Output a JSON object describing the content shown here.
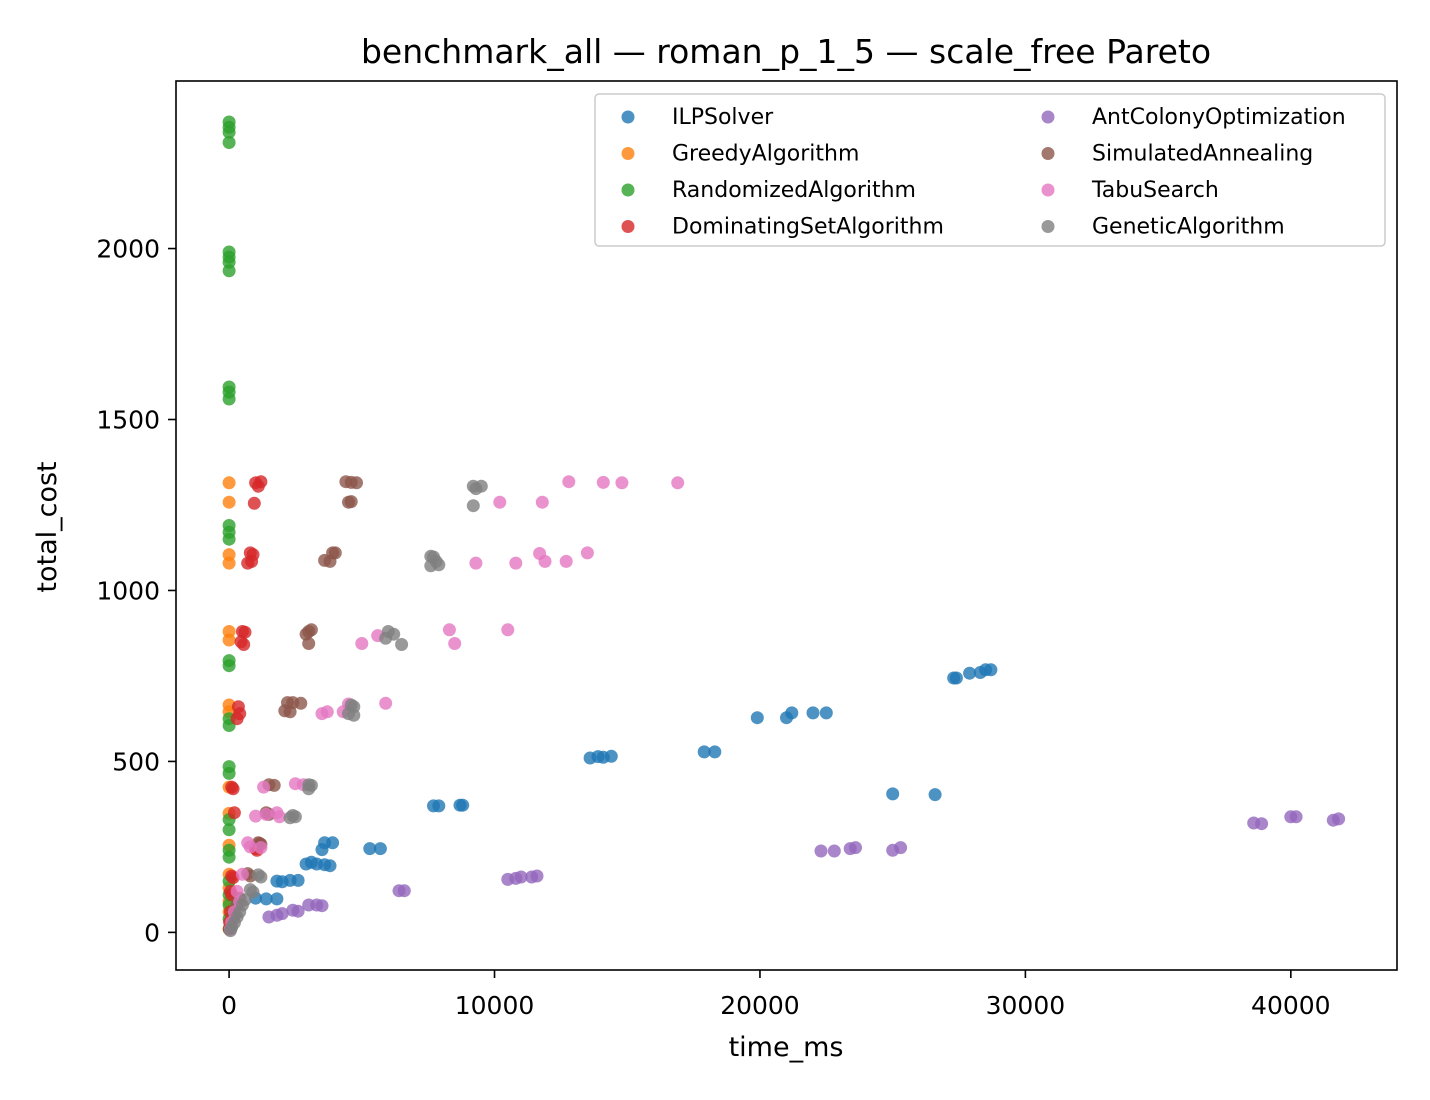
{
  "chart_data": {
    "type": "scatter",
    "title": "benchmark_all — roman_p_1_5 — scale_free Pareto",
    "xlabel": "time_ms",
    "ylabel": "total_cost",
    "xlim": [
      -2000,
      44000
    ],
    "ylim": [
      -110,
      2490
    ],
    "xticks": [
      0,
      10000,
      20000,
      30000,
      40000
    ],
    "yticks": [
      0,
      500,
      1000,
      1500,
      2000
    ],
    "grid": false,
    "legend_position": "top-right",
    "series": [
      {
        "name": "ILPSolver",
        "color": "#1f77b4",
        "points": [
          [
            13600,
            510
          ],
          [
            13900,
            514
          ],
          [
            14100,
            512
          ],
          [
            14400,
            515
          ],
          [
            17900,
            528
          ],
          [
            18300,
            528
          ],
          [
            19900,
            628
          ],
          [
            21000,
            628
          ],
          [
            21200,
            642
          ],
          [
            22000,
            642
          ],
          [
            22500,
            642
          ],
          [
            27300,
            744
          ],
          [
            27400,
            744
          ],
          [
            27900,
            758
          ],
          [
            28300,
            760
          ],
          [
            28500,
            768
          ],
          [
            28700,
            768
          ],
          [
            25000,
            405
          ],
          [
            26600,
            403
          ],
          [
            7700,
            370
          ],
          [
            7900,
            370
          ],
          [
            8700,
            372
          ],
          [
            8800,
            372
          ],
          [
            5300,
            245
          ],
          [
            5700,
            245
          ],
          [
            3600,
            262
          ],
          [
            3900,
            262
          ],
          [
            3500,
            242
          ],
          [
            2900,
            200
          ],
          [
            3100,
            205
          ],
          [
            3300,
            200
          ],
          [
            3600,
            198
          ],
          [
            3800,
            195
          ],
          [
            1800,
            150
          ],
          [
            2000,
            148
          ],
          [
            2300,
            152
          ],
          [
            2600,
            152
          ],
          [
            1000,
            100
          ],
          [
            1400,
            98
          ],
          [
            1800,
            98
          ]
        ]
      },
      {
        "name": "GreedyAlgorithm",
        "color": "#ff7f0e",
        "points": [
          [
            0,
            1315
          ],
          [
            0,
            1258
          ],
          [
            0,
            1105
          ],
          [
            0,
            1080
          ],
          [
            0,
            880
          ],
          [
            0,
            855
          ],
          [
            0,
            665
          ],
          [
            0,
            645
          ],
          [
            0,
            425
          ],
          [
            0,
            348
          ],
          [
            0,
            255
          ],
          [
            0,
            170
          ],
          [
            0,
            130
          ],
          [
            0,
            90
          ],
          [
            0,
            60
          ]
        ]
      },
      {
        "name": "RandomizedAlgorithm",
        "color": "#2ca02c",
        "points": [
          [
            0,
            2370
          ],
          [
            0,
            2355
          ],
          [
            0,
            2340
          ],
          [
            0,
            2310
          ],
          [
            0,
            1990
          ],
          [
            0,
            1975
          ],
          [
            0,
            1960
          ],
          [
            0,
            1935
          ],
          [
            0,
            1595
          ],
          [
            0,
            1580
          ],
          [
            0,
            1560
          ],
          [
            0,
            1190
          ],
          [
            0,
            1170
          ],
          [
            0,
            1150
          ],
          [
            0,
            795
          ],
          [
            0,
            780
          ],
          [
            0,
            625
          ],
          [
            0,
            605
          ],
          [
            0,
            485
          ],
          [
            0,
            465
          ],
          [
            0,
            330
          ],
          [
            0,
            300
          ],
          [
            0,
            240
          ],
          [
            0,
            220
          ],
          [
            0,
            150
          ],
          [
            0,
            110
          ],
          [
            0,
            80
          ],
          [
            0,
            40
          ],
          [
            0,
            10
          ]
        ]
      },
      {
        "name": "DominatingSetAlgorithm",
        "color": "#d62728",
        "points": [
          [
            1000,
            1315
          ],
          [
            1200,
            1318
          ],
          [
            1100,
            1305
          ],
          [
            950,
            1255
          ],
          [
            800,
            1110
          ],
          [
            900,
            1105
          ],
          [
            700,
            1080
          ],
          [
            850,
            1085
          ],
          [
            500,
            880
          ],
          [
            600,
            878
          ],
          [
            450,
            850
          ],
          [
            550,
            842
          ],
          [
            350,
            660
          ],
          [
            400,
            640
          ],
          [
            300,
            625
          ],
          [
            100,
            425
          ],
          [
            150,
            420
          ],
          [
            200,
            350
          ],
          [
            1150,
            260
          ],
          [
            1000,
            245
          ],
          [
            1050,
            240
          ],
          [
            100,
            165
          ],
          [
            150,
            160
          ],
          [
            50,
            120
          ],
          [
            100,
            110
          ],
          [
            50,
            60
          ],
          [
            20,
            30
          ],
          [
            10,
            10
          ]
        ]
      },
      {
        "name": "AntColonyOptimization",
        "color": "#9467bd",
        "points": [
          [
            38600,
            320
          ],
          [
            38900,
            318
          ],
          [
            40000,
            338
          ],
          [
            40200,
            338
          ],
          [
            41600,
            328
          ],
          [
            41800,
            332
          ],
          [
            22300,
            238
          ],
          [
            22800,
            238
          ],
          [
            23400,
            245
          ],
          [
            23600,
            248
          ],
          [
            25000,
            240
          ],
          [
            25300,
            248
          ],
          [
            10500,
            155
          ],
          [
            10800,
            158
          ],
          [
            11000,
            162
          ],
          [
            11400,
            162
          ],
          [
            11600,
            165
          ],
          [
            6400,
            122
          ],
          [
            6600,
            122
          ],
          [
            3000,
            80
          ],
          [
            3300,
            80
          ],
          [
            3500,
            78
          ],
          [
            2400,
            65
          ],
          [
            2600,
            62
          ],
          [
            2000,
            55
          ],
          [
            1800,
            50
          ],
          [
            1500,
            45
          ]
        ]
      },
      {
        "name": "SimulatedAnnealing",
        "color": "#8c564b",
        "points": [
          [
            4400,
            1318
          ],
          [
            4600,
            1316
          ],
          [
            4800,
            1315
          ],
          [
            4500,
            1258
          ],
          [
            4600,
            1260
          ],
          [
            3600,
            1088
          ],
          [
            3800,
            1085
          ],
          [
            3900,
            1110
          ],
          [
            4000,
            1110
          ],
          [
            2900,
            872
          ],
          [
            3000,
            880
          ],
          [
            3100,
            885
          ],
          [
            3000,
            845
          ],
          [
            2200,
            672
          ],
          [
            2400,
            672
          ],
          [
            2700,
            670
          ],
          [
            2100,
            648
          ],
          [
            2300,
            645
          ],
          [
            1500,
            432
          ],
          [
            1700,
            430
          ],
          [
            1400,
            350
          ],
          [
            1500,
            345
          ],
          [
            1100,
            262
          ],
          [
            1200,
            258
          ],
          [
            700,
            172
          ],
          [
            800,
            165
          ],
          [
            400,
            100
          ],
          [
            300,
            80
          ],
          [
            200,
            50
          ]
        ]
      },
      {
        "name": "TabuSearch",
        "color": "#e377c2",
        "points": [
          [
            12800,
            1318
          ],
          [
            14100,
            1316
          ],
          [
            14800,
            1315
          ],
          [
            16900,
            1315
          ],
          [
            10200,
            1258
          ],
          [
            11800,
            1258
          ],
          [
            11700,
            1108
          ],
          [
            11900,
            1085
          ],
          [
            12700,
            1085
          ],
          [
            13500,
            1110
          ],
          [
            9300,
            1080
          ],
          [
            10800,
            1080
          ],
          [
            10500,
            885
          ],
          [
            8300,
            885
          ],
          [
            8500,
            845
          ],
          [
            5000,
            845
          ],
          [
            5600,
            868
          ],
          [
            5900,
            670
          ],
          [
            4500,
            668
          ],
          [
            4300,
            645
          ],
          [
            3700,
            645
          ],
          [
            3500,
            640
          ],
          [
            2500,
            435
          ],
          [
            2800,
            432
          ],
          [
            1300,
            425
          ],
          [
            1800,
            350
          ],
          [
            1400,
            345
          ],
          [
            1000,
            340
          ],
          [
            1900,
            338
          ],
          [
            700,
            262
          ],
          [
            800,
            250
          ],
          [
            1200,
            248
          ],
          [
            500,
            170
          ],
          [
            300,
            120
          ],
          [
            400,
            90
          ],
          [
            200,
            60
          ],
          [
            100,
            30
          ],
          [
            50,
            10
          ]
        ]
      },
      {
        "name": "GeneticAlgorithm",
        "color": "#7f7f7f",
        "points": [
          [
            9200,
            1305
          ],
          [
            9500,
            1305
          ],
          [
            9300,
            1298
          ],
          [
            9200,
            1248
          ],
          [
            7600,
            1100
          ],
          [
            7700,
            1098
          ],
          [
            7800,
            1085
          ],
          [
            7600,
            1072
          ],
          [
            7900,
            1075
          ],
          [
            6000,
            880
          ],
          [
            6200,
            872
          ],
          [
            5900,
            860
          ],
          [
            6500,
            842
          ],
          [
            4600,
            665
          ],
          [
            4700,
            660
          ],
          [
            4500,
            640
          ],
          [
            4700,
            635
          ],
          [
            3000,
            432
          ],
          [
            3100,
            430
          ],
          [
            3000,
            420
          ],
          [
            2400,
            342
          ],
          [
            2500,
            338
          ],
          [
            2300,
            335
          ],
          [
            1100,
            168
          ],
          [
            1200,
            162
          ],
          [
            800,
            125
          ],
          [
            900,
            118
          ],
          [
            600,
            95
          ],
          [
            500,
            80
          ],
          [
            400,
            60
          ],
          [
            300,
            45
          ],
          [
            200,
            28
          ],
          [
            100,
            15
          ],
          [
            50,
            5
          ]
        ]
      }
    ]
  }
}
